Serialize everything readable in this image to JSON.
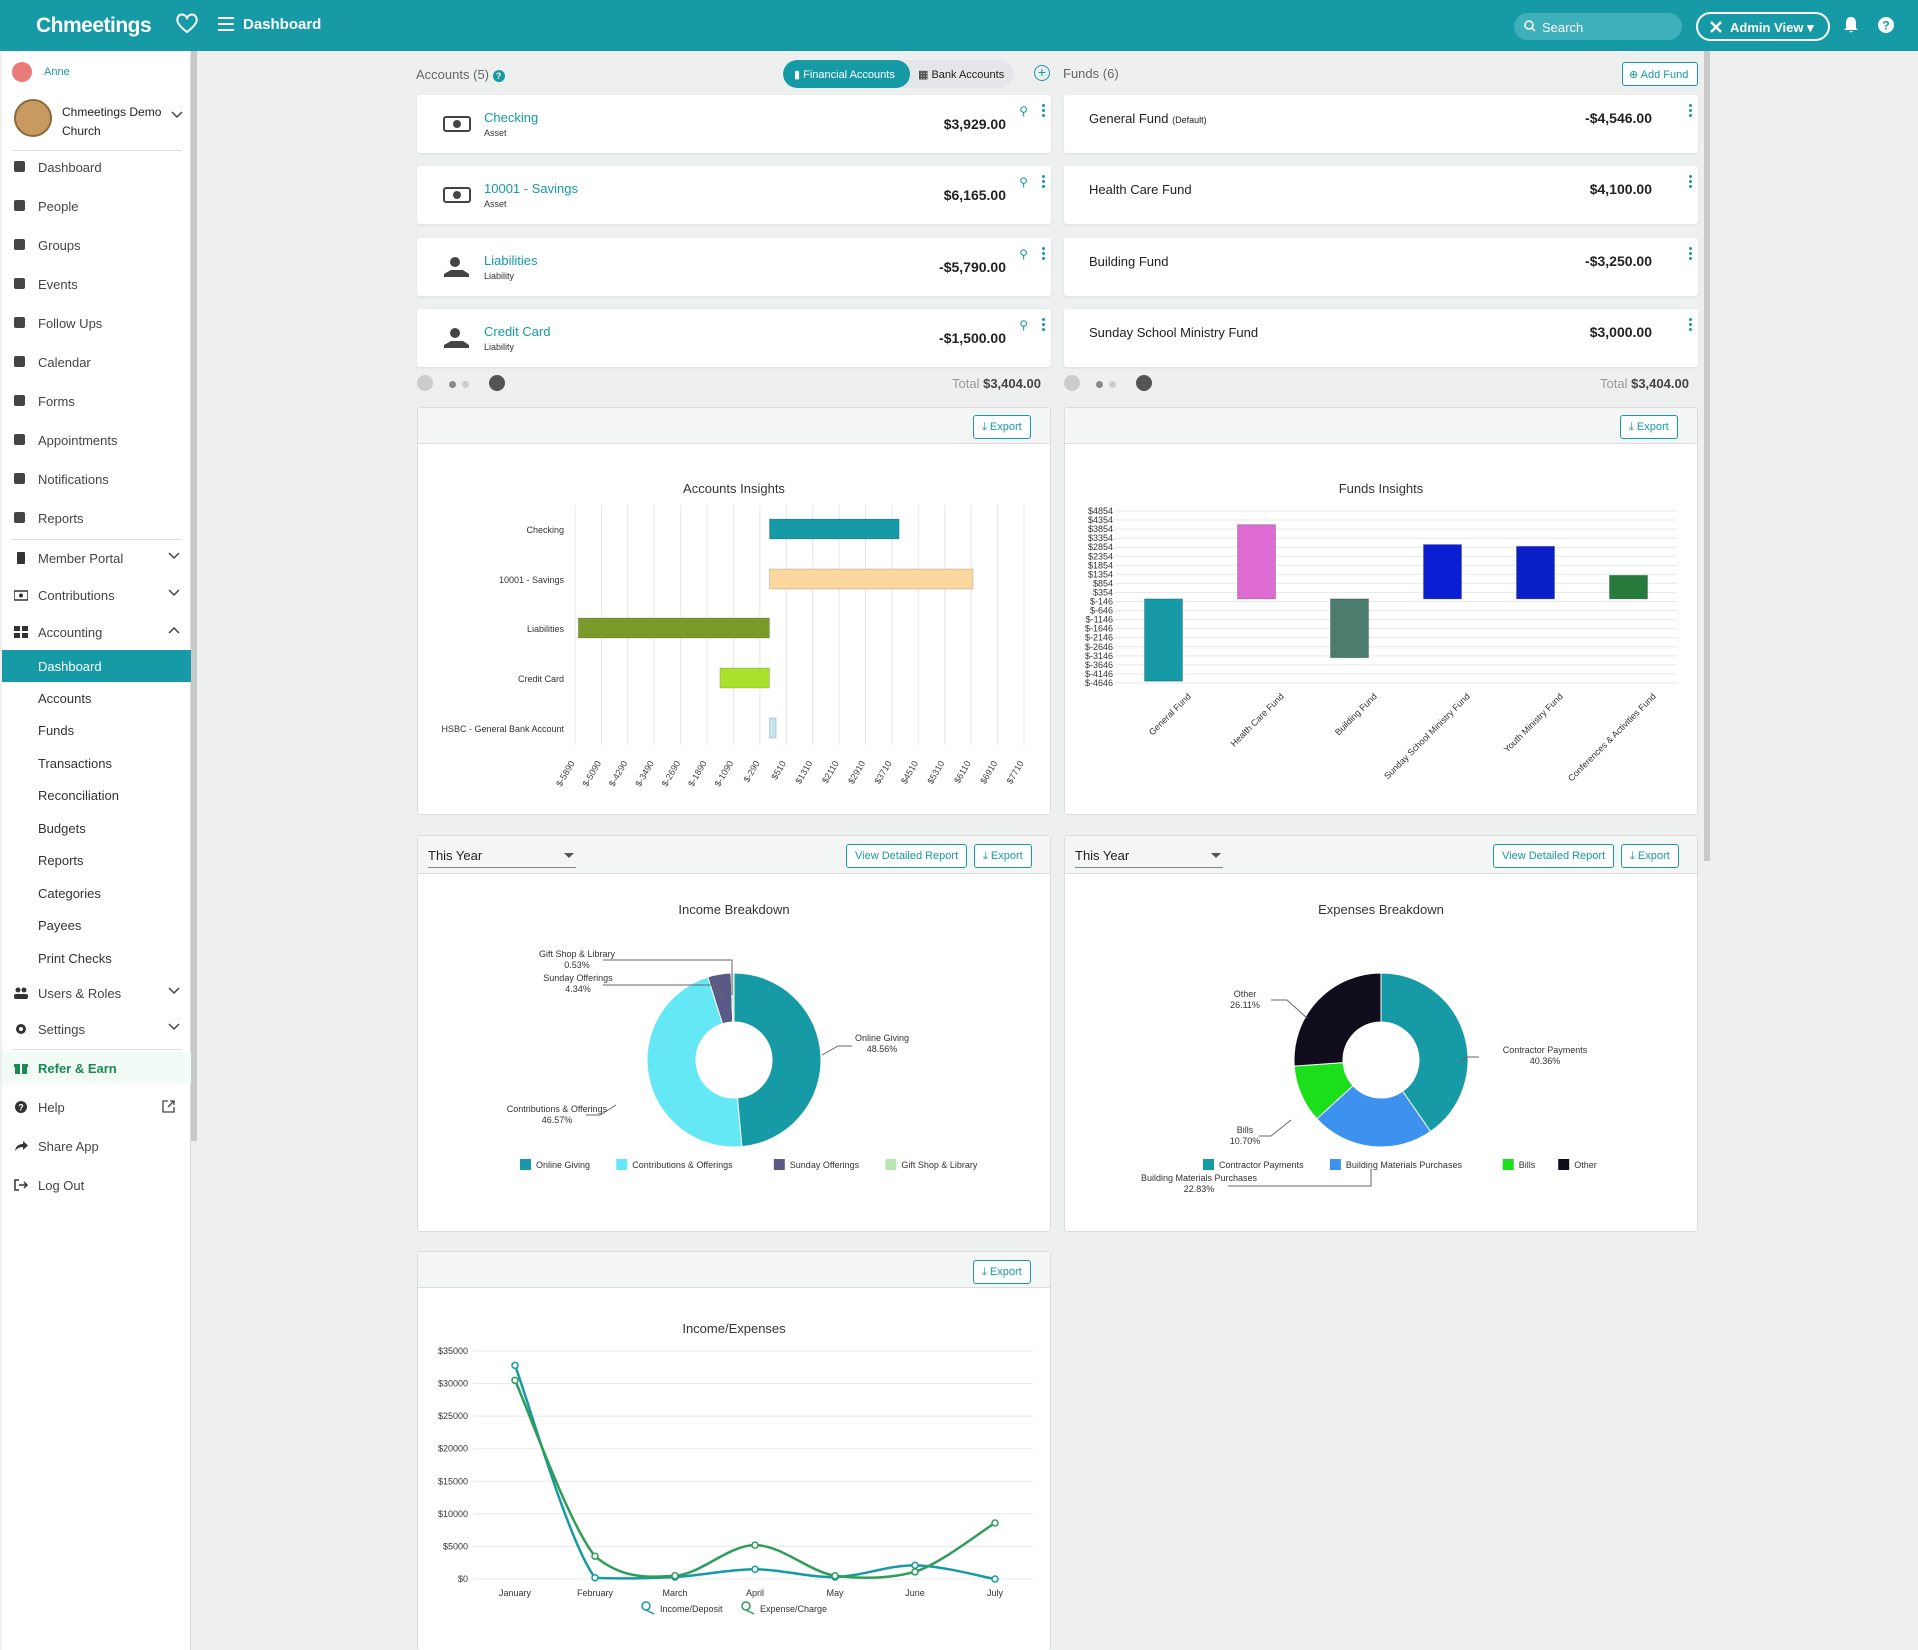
{
  "header": {
    "logo": "Chmeetings",
    "title": "Dashboard",
    "search_placeholder": "Search",
    "admin_view": "Admin View"
  },
  "sidebar": {
    "user": "Anne",
    "church": "Chmeetings Demo Church",
    "items": [
      {
        "label": "Dashboard",
        "icon": "chart-line-icon"
      },
      {
        "label": "People",
        "icon": "person-icon"
      },
      {
        "label": "Groups",
        "icon": "users-icon"
      },
      {
        "label": "Events",
        "icon": "calendar-icon"
      },
      {
        "label": "Follow Ups",
        "icon": "handshake-icon"
      },
      {
        "label": "Calendar",
        "icon": "calendar-grid-icon"
      },
      {
        "label": "Forms",
        "icon": "form-icon"
      },
      {
        "label": "Appointments",
        "icon": "clock-icon"
      },
      {
        "label": "Notifications",
        "icon": "bell-icon"
      },
      {
        "label": "Reports",
        "icon": "report-icon"
      }
    ],
    "member_portal": "Member Portal",
    "contributions": "Contributions",
    "accounting": "Accounting",
    "accounting_items": [
      "Dashboard",
      "Accounts",
      "Funds",
      "Transactions",
      "Reconciliation",
      "Budgets",
      "Reports",
      "Categories",
      "Payees",
      "Print Checks"
    ],
    "users_roles": "Users & Roles",
    "settings": "Settings",
    "refer": "Refer & Earn",
    "help": "Help",
    "share": "Share App",
    "logout": "Log Out"
  },
  "accounts": {
    "heading": "Accounts",
    "count": "(5)",
    "tab_financial": "Financial Accounts",
    "tab_bank": "Bank Accounts",
    "items": [
      {
        "name": "Checking",
        "type": "Asset",
        "amount": "$3,929.00"
      },
      {
        "name": "10001 - Savings",
        "type": "Asset",
        "amount": "$6,165.00"
      },
      {
        "name": "Liabilities",
        "type": "Liability",
        "amount": "-$5,790.00"
      },
      {
        "name": "Credit Card",
        "type": "Liability",
        "amount": "-$1,500.00"
      }
    ],
    "total_label": "Total",
    "total": "$3,404.00"
  },
  "funds": {
    "heading": "Funds",
    "count": "(6)",
    "add": "Add Fund",
    "items": [
      {
        "name": "General Fund",
        "tag": "(Default)",
        "amount": "-$4,546.00"
      },
      {
        "name": "Health Care Fund",
        "tag": "",
        "amount": "$4,100.00"
      },
      {
        "name": "Building Fund",
        "tag": "",
        "amount": "-$3,250.00"
      },
      {
        "name": "Sunday School Ministry Fund",
        "tag": "",
        "amount": "$3,000.00"
      }
    ],
    "total_label": "Total",
    "total": "$3,404.00"
  },
  "buttons": {
    "export": "Export",
    "view_report": "View Detailed Report",
    "this_year": "This Year"
  },
  "chart_data": [
    {
      "type": "bar",
      "orientation": "horizontal",
      "title": "Accounts Insights",
      "categories": [
        "Checking",
        "10001 - Savings",
        "Liabilities",
        "Credit Card",
        "HSBC - General Bank Account"
      ],
      "values": [
        3929,
        6165,
        -5790,
        -1500,
        200
      ],
      "colors": [
        "#169aa6",
        "#fdd7a0",
        "#7c9a2c",
        "#a9e22c",
        "#c4e6ec"
      ],
      "xticks": [
        "$-5890",
        "$-5090",
        "$-4290",
        "$-3490",
        "$-2690",
        "$-1890",
        "$-1090",
        "$-290",
        "$510",
        "$1310",
        "$2110",
        "$2910",
        "$3710",
        "$4510",
        "$5310",
        "$6110",
        "$6910",
        "$7710"
      ],
      "xlim": [
        -5890,
        7710
      ]
    },
    {
      "type": "bar",
      "title": "Funds Insights",
      "categories": [
        "General Fund",
        "Health Care Fund",
        "Building Fund",
        "Sunday School Ministry Fund",
        "Youth Ministry Fund",
        "Conferences & Activities Fund"
      ],
      "values": [
        -4546,
        4100,
        -3250,
        3000,
        2900,
        1300
      ],
      "colors": [
        "#169aa6",
        "#de6bd1",
        "#4b7c6d",
        "#0a1fd4",
        "#0a1fc8",
        "#257a3c"
      ],
      "yticks": [
        "$4854",
        "$4354",
        "$3854",
        "$3354",
        "$2854",
        "$2354",
        "$1854",
        "$1354",
        "$854",
        "$354",
        "$-146",
        "$-646",
        "$-1146",
        "$-1646",
        "$-2146",
        "$-2646",
        "$-3146",
        "$-3646",
        "$-4146",
        "$-4646"
      ],
      "ylim": [
        -4646,
        4854
      ]
    },
    {
      "type": "pie",
      "title": "Income Breakdown",
      "labels": [
        "Online Giving",
        "Contributions & Offerings",
        "Sunday Offerings",
        "Gift Shop & Library"
      ],
      "values": [
        48.56,
        46.57,
        4.34,
        0.53
      ],
      "percent_labels": [
        "48.56%",
        "46.57%",
        "4.34%",
        "0.53%"
      ],
      "colors": [
        "#169aa6",
        "#64e8f5",
        "#5a5a86",
        "#b9e6b0"
      ]
    },
    {
      "type": "pie",
      "title": "Expenses Breakdown",
      "labels": [
        "Contractor Payments",
        "Building Materials Purchases",
        "Bills",
        "Other"
      ],
      "values": [
        40.36,
        22.83,
        10.7,
        26.11
      ],
      "percent_labels": [
        "40.36%",
        "22.83%",
        "10.70%",
        "26.11%"
      ],
      "colors": [
        "#169aa6",
        "#3d92f0",
        "#1cdf1c",
        "#110d1c"
      ]
    },
    {
      "type": "line",
      "title": "Income/Expenses",
      "x": [
        "January",
        "February",
        "March",
        "April",
        "May",
        "June",
        "July"
      ],
      "yticks": [
        "$35000",
        "$30000",
        "$25000",
        "$20000",
        "$15000",
        "$10000",
        "$5000",
        "$0"
      ],
      "ylim": [
        0,
        35000
      ],
      "series": [
        {
          "name": "Income/Deposit",
          "color": "#169aa6",
          "values": [
            32800,
            200,
            300,
            1500,
            300,
            2100,
            0
          ]
        },
        {
          "name": "Expense/Charge",
          "color": "#2e9d57",
          "values": [
            30500,
            3500,
            500,
            5200,
            500,
            1100,
            8600
          ]
        }
      ]
    }
  ]
}
